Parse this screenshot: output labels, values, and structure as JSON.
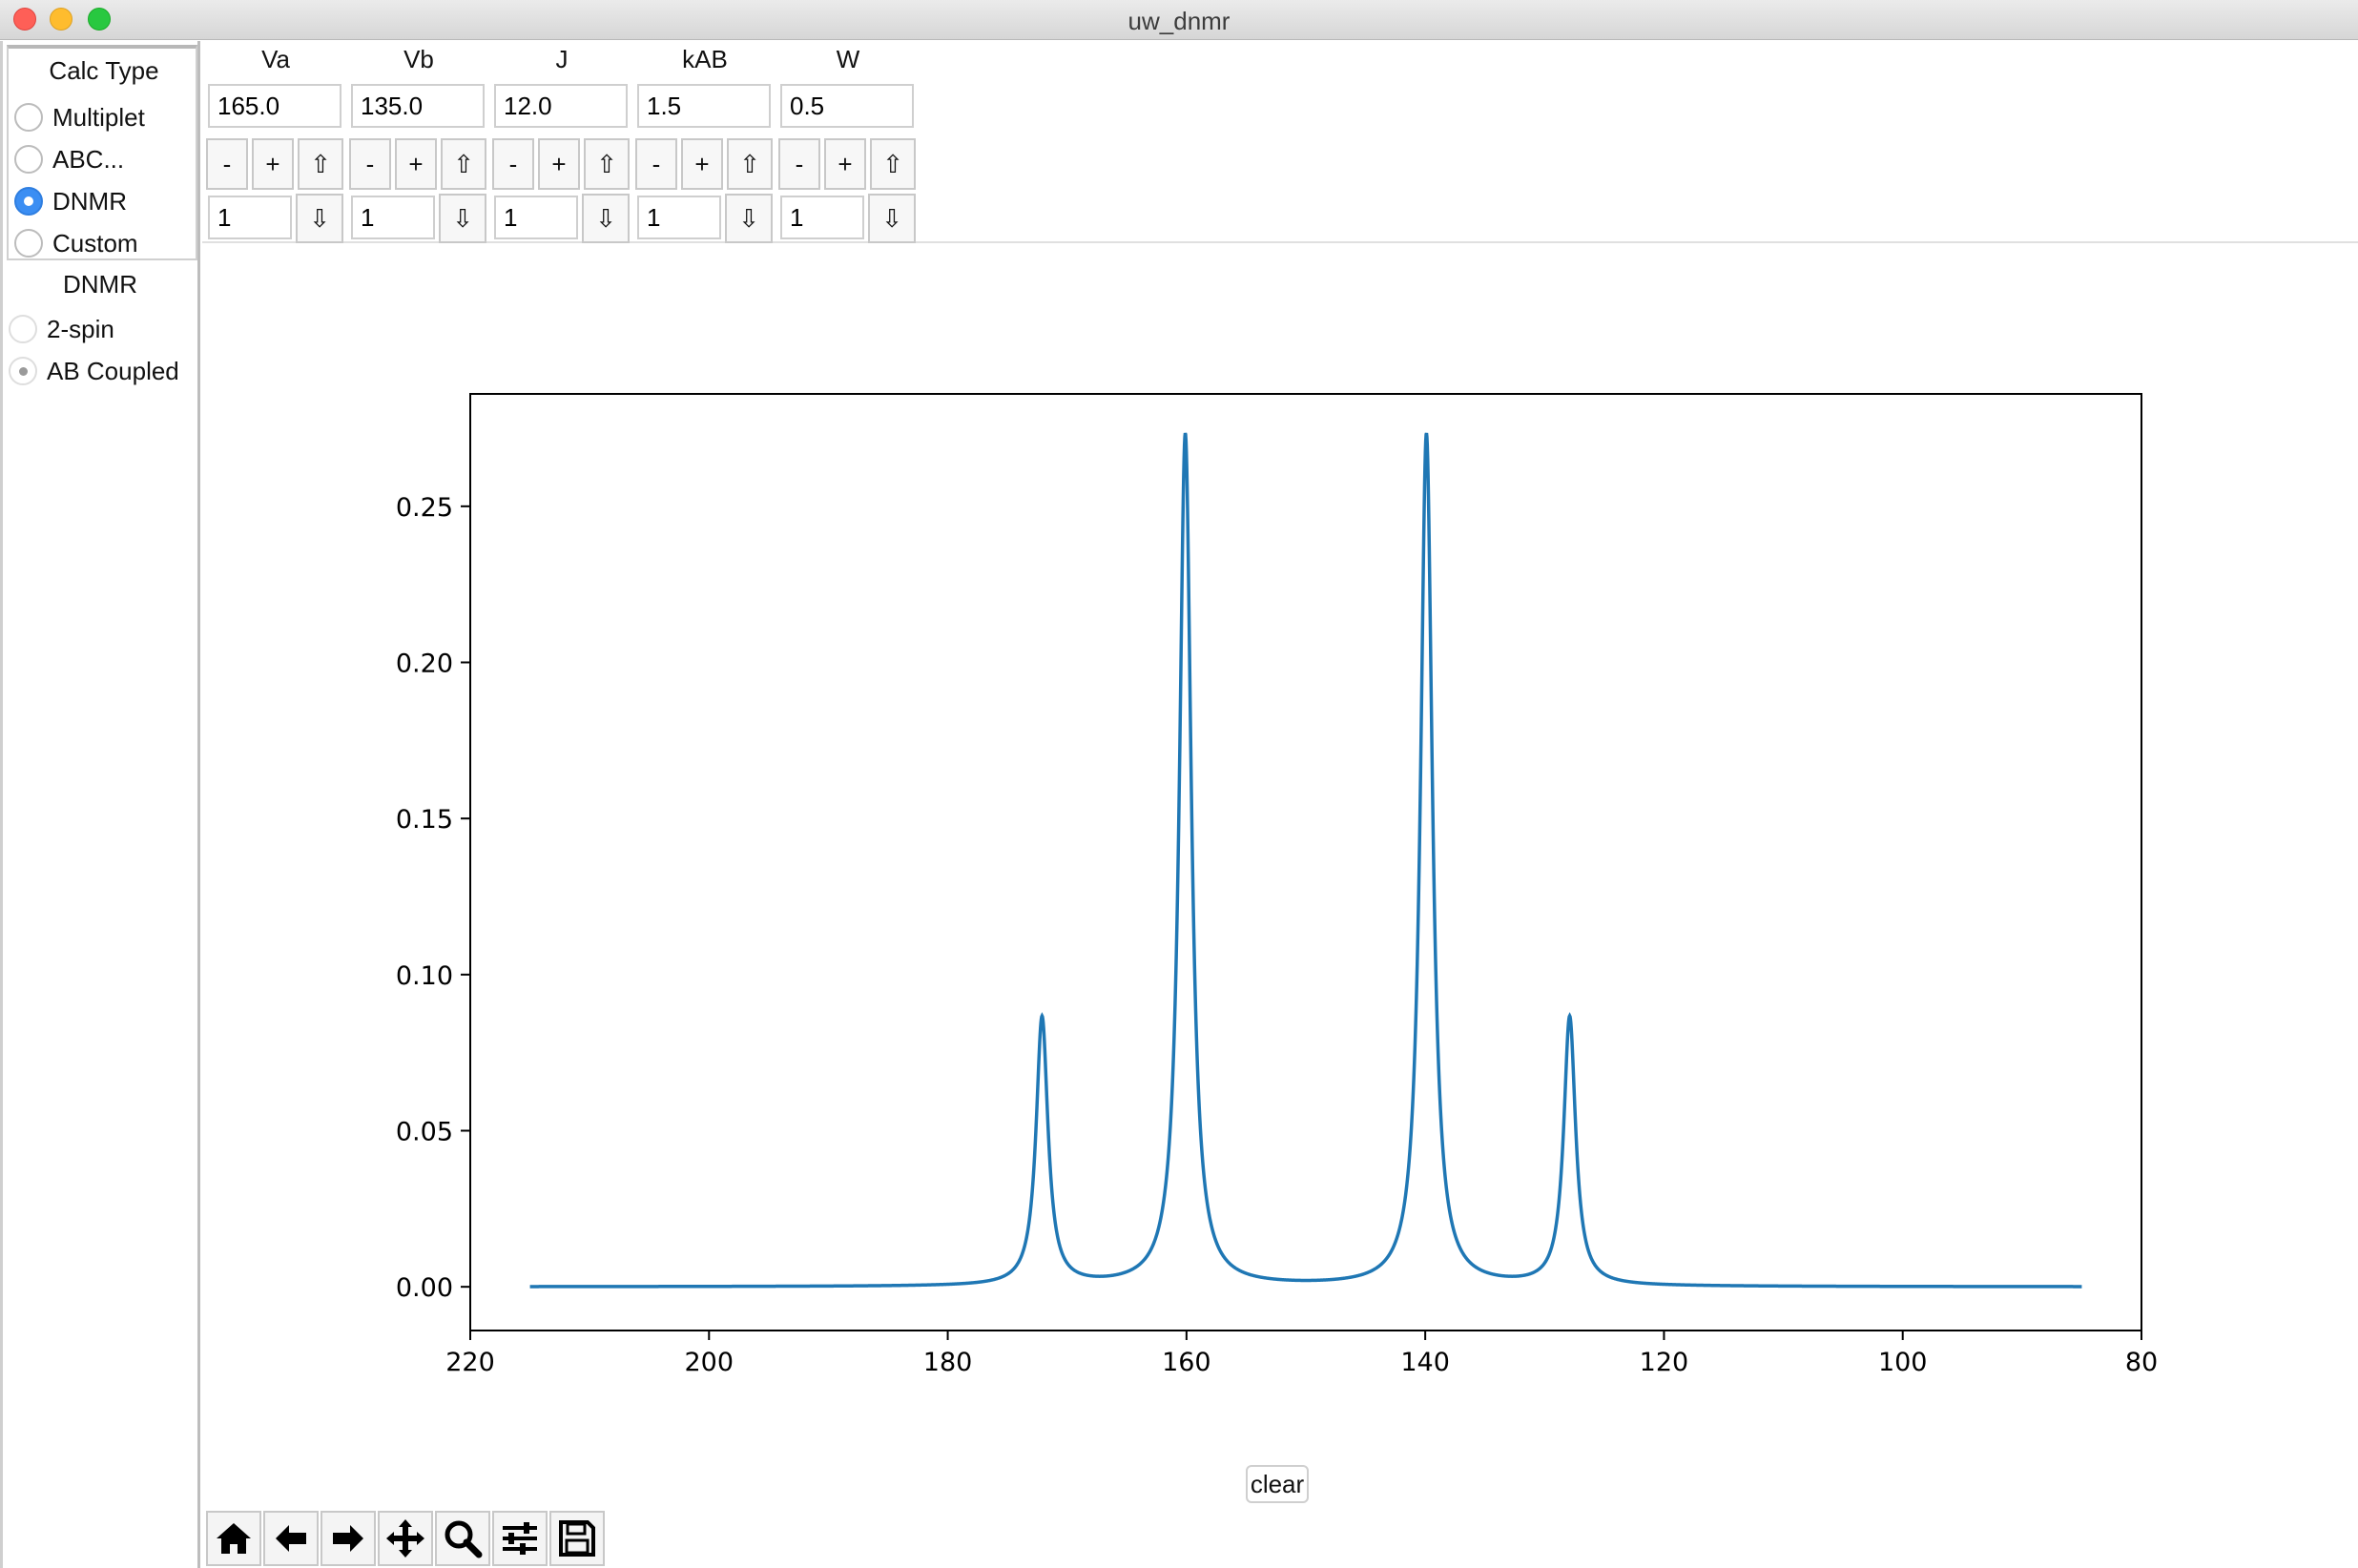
{
  "window": {
    "title": "uw_dnmr"
  },
  "sidebar": {
    "calc_type_title": "Calc Type",
    "calc_types": [
      {
        "label": "Multiplet",
        "selected": false
      },
      {
        "label": "ABC...",
        "selected": false
      },
      {
        "label": "DNMR",
        "selected": true
      },
      {
        "label": "Custom",
        "selected": false
      }
    ],
    "dnmr_title": "DNMR",
    "dnmr_models": [
      {
        "label": "2-spin",
        "selected": false
      },
      {
        "label": "AB Coupled",
        "selected": true
      }
    ]
  },
  "params": [
    {
      "label": "Va",
      "value": "165.0",
      "step": "1"
    },
    {
      "label": "Vb",
      "value": "135.0",
      "step": "1"
    },
    {
      "label": "J",
      "value": "12.0",
      "step": "1"
    },
    {
      "label": "kAB",
      "value": "1.5",
      "step": "1"
    },
    {
      "label": "W",
      "value": "0.5",
      "step": "1"
    }
  ],
  "controls": {
    "minus_label": "-",
    "plus_label": "+",
    "up_arrow": "⇧",
    "down_arrow": "⇩",
    "clear_label": "clear"
  },
  "toolbar": [
    "home-icon",
    "back-arrow-icon",
    "forward-arrow-icon",
    "pan-icon",
    "zoom-icon",
    "configure-subplots-icon",
    "save-icon"
  ],
  "colors": {
    "line": "#1f77b4",
    "accent": "#3b8ef3"
  },
  "chart_data": {
    "type": "line",
    "xlim": [
      220,
      80
    ],
    "ylim": [
      -0.014,
      0.286
    ],
    "x_ticks": [
      220,
      200,
      180,
      160,
      140,
      120,
      100,
      80
    ],
    "y_ticks": [
      0.0,
      0.05,
      0.1,
      0.15,
      0.2,
      0.25
    ],
    "y_tick_labels": [
      "0.00",
      "0.05",
      "0.10",
      "0.15",
      "0.20",
      "0.25"
    ],
    "x_range": [
      215,
      85
    ],
    "baseline": 0.0,
    "peaks": [
      {
        "x": 172.1,
        "height": 0.086
      },
      {
        "x": 160.1,
        "height": 0.273
      },
      {
        "x": 139.9,
        "height": 0.273
      },
      {
        "x": 127.9,
        "height": 0.086
      }
    ],
    "grid": false,
    "legend": "none",
    "title": "",
    "xlabel": "",
    "ylabel": ""
  }
}
